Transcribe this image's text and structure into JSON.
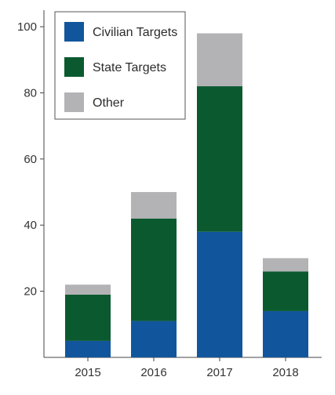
{
  "chart_data": {
    "type": "bar",
    "stacked": true,
    "categories": [
      "2015",
      "2016",
      "2017",
      "2018"
    ],
    "series": [
      {
        "name": "Civilian Targets",
        "color": "#11569c",
        "values": [
          5,
          11,
          38,
          14
        ]
      },
      {
        "name": "State Targets",
        "color": "#0b5a2f",
        "values": [
          14,
          31,
          44,
          12
        ]
      },
      {
        "name": "Other",
        "color": "#b3b3b6",
        "values": [
          3,
          8,
          16,
          4
        ]
      }
    ],
    "title": "",
    "xlabel": "",
    "ylabel": "",
    "ylim": [
      0,
      105
    ],
    "yticks": [
      20,
      40,
      60,
      80,
      100
    ],
    "grid": false,
    "legend_position": "top-left"
  }
}
